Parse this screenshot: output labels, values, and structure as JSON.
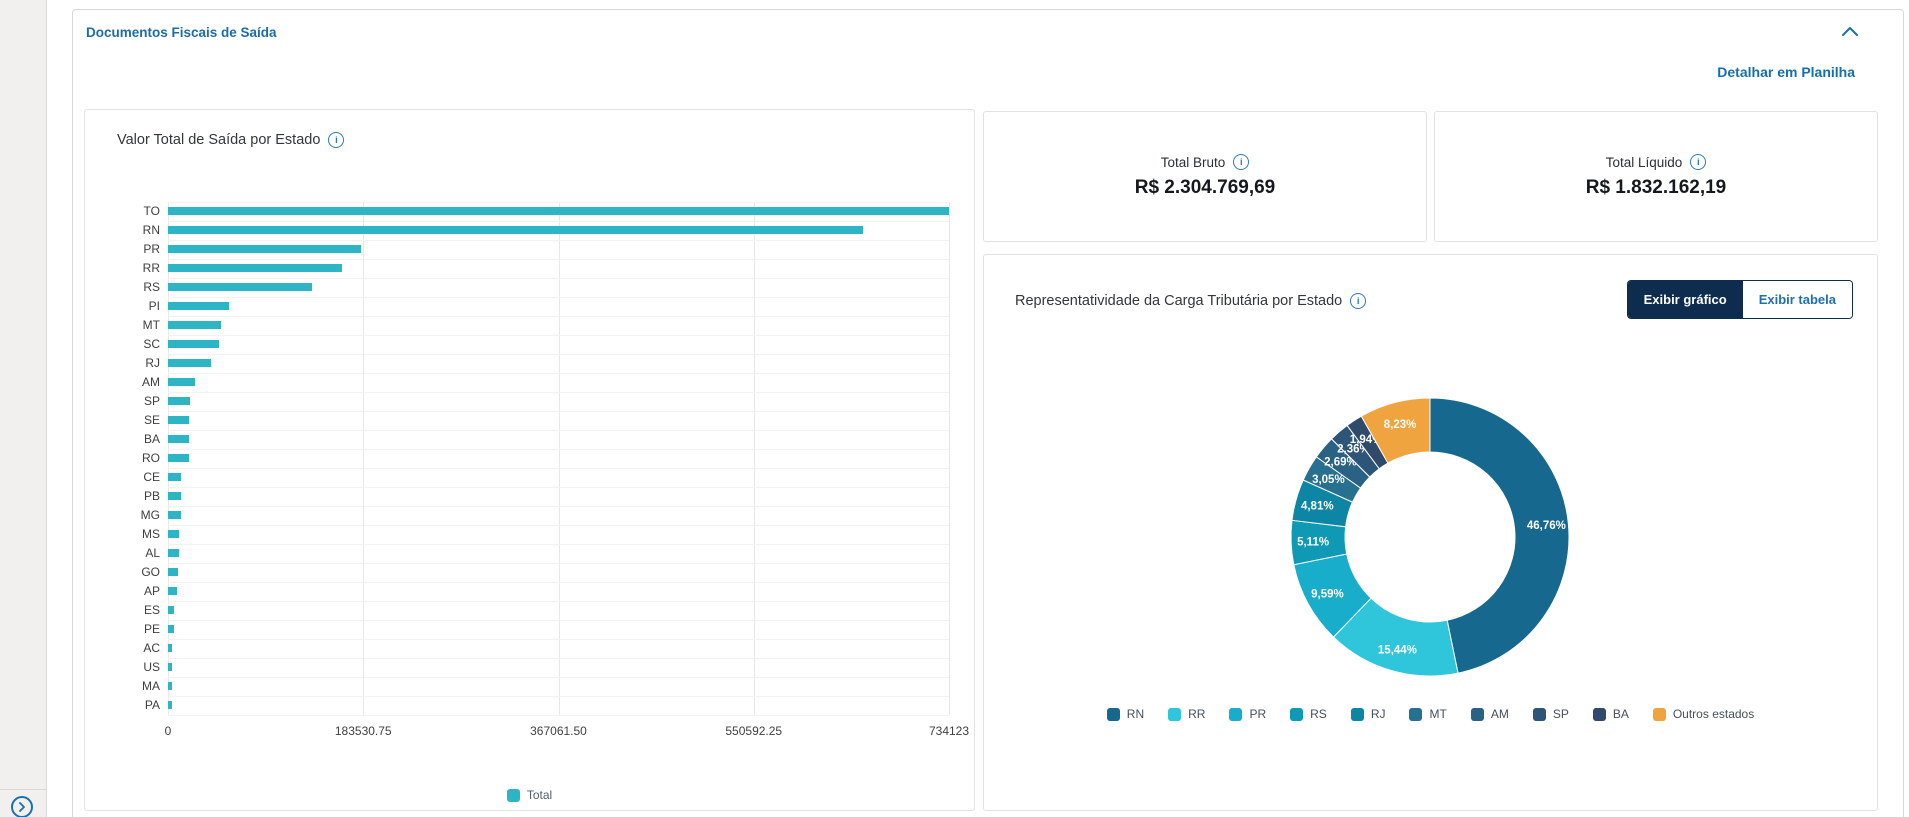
{
  "header": {
    "title": "Documentos Fiscais de Saída",
    "detail_link": "Detalhar em Planilha"
  },
  "icons": {
    "info_glyph": "i"
  },
  "kpis": [
    {
      "label": "Total Bruto",
      "value": "R$ 2.304.769,69"
    },
    {
      "label": "Total Líquido",
      "value": "R$ 1.832.162,19"
    }
  ],
  "toggle": {
    "graph_label": "Exibir gráfico",
    "table_label": "Exibir tabela",
    "active": "graph"
  },
  "chart_data": [
    {
      "type": "bar",
      "orientation": "horizontal",
      "title": "Valor Total de Saída por Estado",
      "legend_label": "Total",
      "bar_color": "#2eb5c5",
      "xlim": [
        0,
        734123
      ],
      "x_ticks": [
        "0",
        "183530.75",
        "367061.50",
        "550592.25",
        "734123"
      ],
      "grid": true,
      "categories": [
        "TO",
        "RN",
        "PR",
        "RR",
        "RS",
        "PI",
        "MT",
        "SC",
        "RJ",
        "AM",
        "SP",
        "SE",
        "BA",
        "RO",
        "CE",
        "PB",
        "MG",
        "MS",
        "AL",
        "GO",
        "AP",
        "ES",
        "PE",
        "AC",
        "US",
        "MA",
        "PA"
      ],
      "values": [
        734123,
        653000,
        181000,
        164000,
        135000,
        57000,
        50000,
        48000,
        40000,
        25000,
        21000,
        20000,
        19800,
        19800,
        12200,
        11900,
        11900,
        10300,
        9900,
        9400,
        8500,
        6100,
        5200,
        4200,
        1800,
        3800,
        1300
      ]
    },
    {
      "type": "pie",
      "donut": true,
      "title": "Representatividade da Carga Tributária por Estado",
      "legend_position": "bottom",
      "categories": [
        "RN",
        "RR",
        "PR",
        "RS",
        "RJ",
        "MT",
        "AM",
        "SP",
        "BA",
        "Outros estados"
      ],
      "values": [
        46.76,
        15.44,
        9.59,
        5.11,
        4.81,
        3.05,
        2.69,
        2.36,
        1.94,
        8.23
      ],
      "labels": [
        "46,76%",
        "15,44%",
        "9,59%",
        "5,11%",
        "4,81%",
        "3,05%",
        "2,69%",
        "2,36%",
        "1,94%",
        "8,23%"
      ],
      "colors": [
        "#16688f",
        "#2fc6db",
        "#18adca",
        "#0f99b5",
        "#0d85a4",
        "#27708f",
        "#2a6284",
        "#2d5578",
        "#304a6c",
        "#efa440"
      ]
    }
  ]
}
